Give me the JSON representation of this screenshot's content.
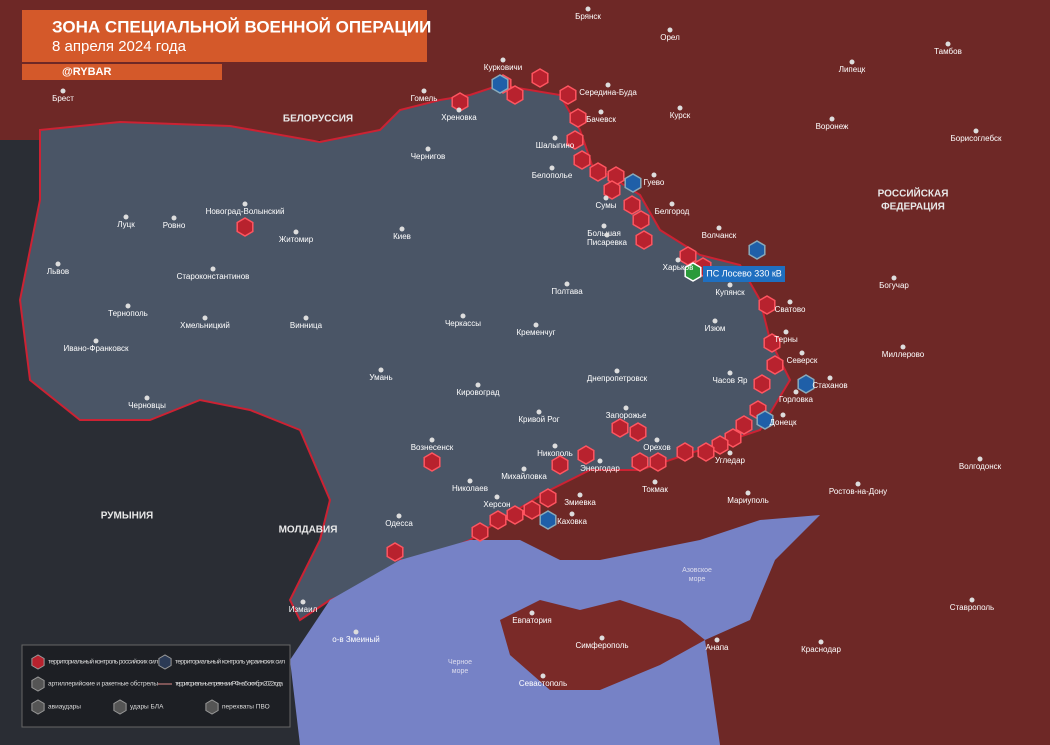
{
  "header": {
    "title": "ЗОНА СПЕЦИАЛЬНОЙ ВОЕННОЙ ОПЕРАЦИИ",
    "date": "8 апреля 2024 года",
    "brand": "@RYBAR"
  },
  "countries": [
    "БЕЛОРУССИЯ",
    "РОССИЙСКАЯ",
    "ФЕДЕРАЦИЯ",
    "РУМЫНИЯ",
    "МОЛДАВИЯ"
  ],
  "cities": [
    "Брянск",
    "Орел",
    "Тамбов",
    "Липецк",
    "Брест",
    "Гомель",
    "Курковичи",
    "Середина-Буда",
    "Хреновка",
    "Бачевск",
    "Курск",
    "Воронеж",
    "Борисоглебск",
    "Шалыгино",
    "Чернигов",
    "Белополье",
    "Гуево",
    "Сумы",
    "Белгород",
    "Новоград-Волынский",
    "Луцк",
    "Ровно",
    "Житомир",
    "Киев",
    "Большая",
    "Писаревка",
    "Волчанск",
    "Богучар",
    "Харьков",
    "Купянск",
    "Львов",
    "Староконстантинов",
    "Полтава",
    "Сватово",
    "Тернополь",
    "Хмельницкий",
    "Винница",
    "Черкассы",
    "Кременчуг",
    "Изюм",
    "Терны",
    "Ивано-Франковск",
    "Северск",
    "Миллерово",
    "Умань",
    "Днепропетровск",
    "Часов Яр",
    "Стаханов",
    "Черновцы",
    "Кировоград",
    "Горловка",
    "Запорожье",
    "Кривой Рог",
    "Донецк",
    "Вознесенск",
    "Никополь",
    "Орехов",
    "Угледар",
    "Волгодонск",
    "Михайловка",
    "Энергодар",
    "Токмак",
    "Ростов-на-Дону",
    "Николаев",
    "Мариуполь",
    "Херсон",
    "Змиевка",
    "Каховка",
    "Одесса",
    "Измаил",
    "Евпатория",
    "Ставрополь",
    "о-в Змеиный",
    "Симферополь",
    "Анапа",
    "Краснодар",
    "Севастополь"
  ],
  "seas": [
    "Азовское",
    "море",
    "Черное",
    "море"
  ],
  "callout": "ПС Лосево 330 кВ",
  "legend": [
    "территориальный контроль российских сил",
    "территориальный контроль украинских сил",
    "артиллерийские и ракетные обстрелы",
    "территориальные претензии РФ на 5 октября 2022 года",
    "авиаудары",
    "удары БЛА",
    "перехваты ПВО"
  ]
}
